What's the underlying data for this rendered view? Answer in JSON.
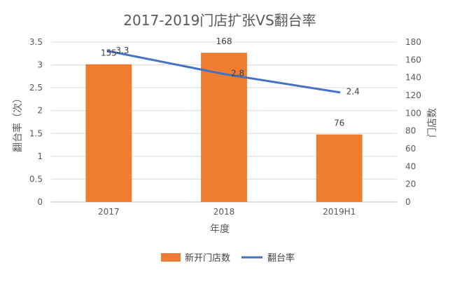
{
  "chart_data": {
    "type": "bar+line",
    "title": "2017-2019门店扩张VS翻台率",
    "categories": [
      "2017",
      "2018",
      "2019H1"
    ],
    "xlabel": "年度",
    "ylabel_left": "翻台率（次）",
    "ylabel_right": "门店数",
    "ylim_left": [
      0,
      3.5
    ],
    "yticks_left": [
      "0",
      "0.5",
      "1",
      "1.5",
      "2",
      "2.5",
      "3",
      "3.5"
    ],
    "ylim_right": [
      0,
      180
    ],
    "yticks_right": [
      "0",
      "20",
      "40",
      "60",
      "80",
      "100",
      "120",
      "140",
      "160",
      "180"
    ],
    "grid": true,
    "legend_position": "bottom",
    "series": [
      {
        "name": "新开门店数",
        "kind": "bar",
        "axis": "right",
        "color": "#ED7D31",
        "values": [
          155,
          168,
          76
        ],
        "labels": [
          "155",
          "168",
          "76"
        ]
      },
      {
        "name": "翻台率",
        "kind": "line",
        "axis": "left",
        "color": "#4472C4",
        "values": [
          3.3,
          2.8,
          2.4
        ],
        "labels": [
          "3.3",
          "2.8",
          "2.4"
        ]
      }
    ]
  }
}
